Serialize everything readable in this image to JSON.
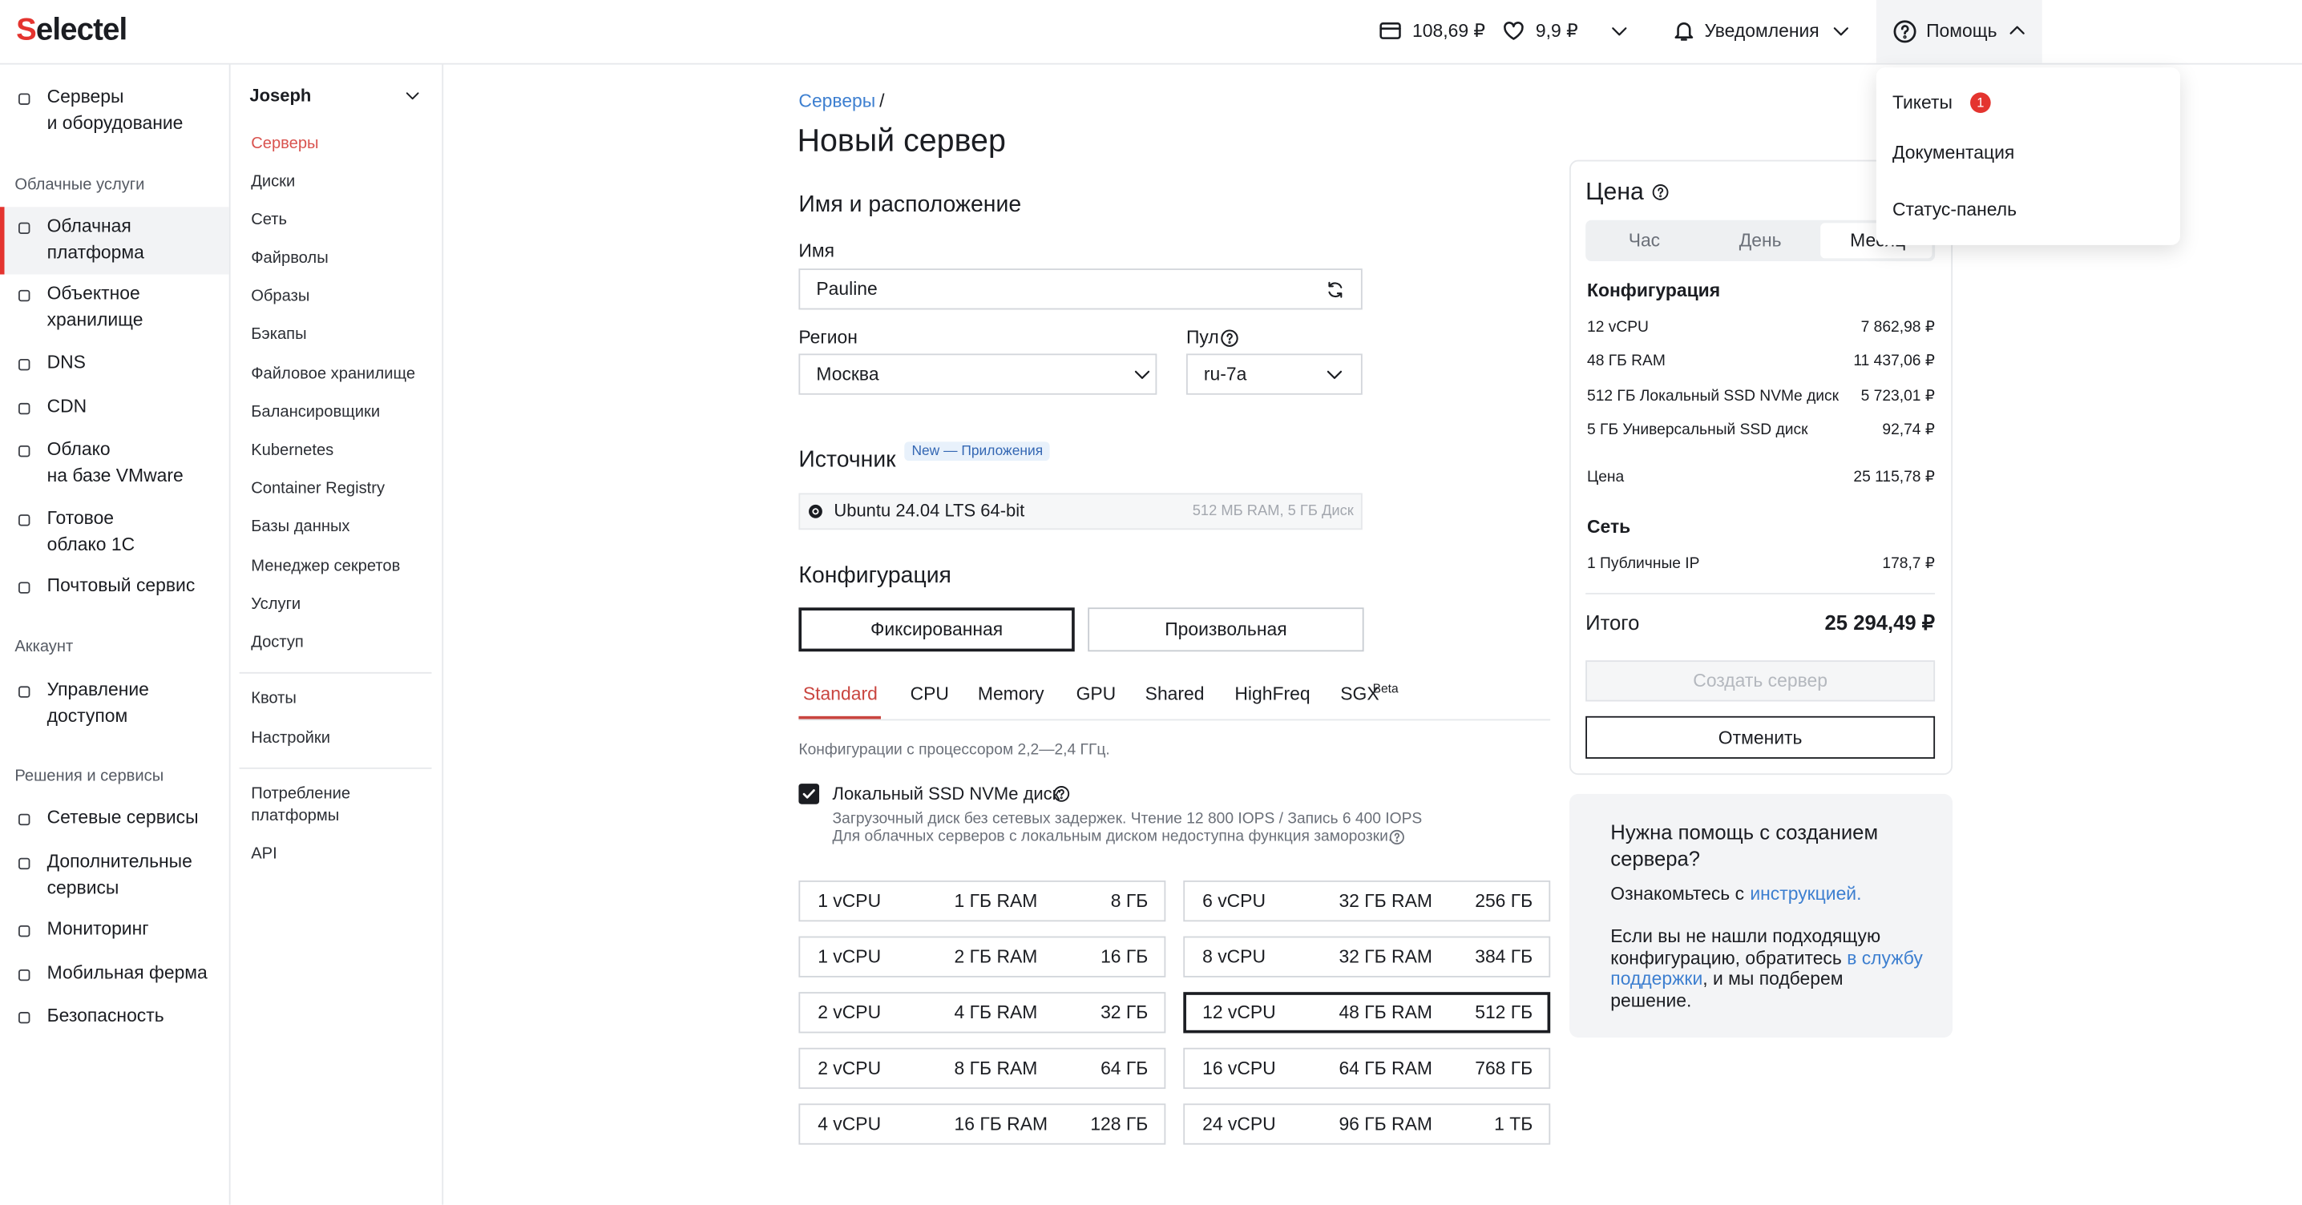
{
  "header": {
    "logo": "Selectel",
    "balance": "108,69 ₽",
    "bonus": "9,9 ₽",
    "notifications": "Уведомления",
    "help": "Помощь"
  },
  "help_menu": {
    "items": [
      {
        "label": "Тикеты",
        "badge": "1"
      },
      {
        "label": "Документация"
      },
      {
        "label": "Статус-панель"
      }
    ]
  },
  "sidebar": {
    "sections": [
      {
        "items": [
          {
            "label": "Серверы\nи оборудование"
          }
        ]
      },
      {
        "heading": "Облачные услуги",
        "items": [
          {
            "label": "Облачная\nплатформа",
            "active": true
          },
          {
            "label": "Объектное\nхранилище"
          },
          {
            "label": "DNS"
          },
          {
            "label": "CDN"
          },
          {
            "label": "Облако\nна базе VMware"
          },
          {
            "label": "Готовое\nоблако 1С"
          },
          {
            "label": "Почтовый сервис"
          }
        ]
      },
      {
        "heading": "Аккаунт",
        "items": [
          {
            "label": "Управление\nдоступом"
          }
        ]
      },
      {
        "heading": "Решения и сервисы",
        "items": [
          {
            "label": "Сетевые сервисы"
          },
          {
            "label": "Дополнительные\nсервисы"
          },
          {
            "label": "Мониторинг"
          },
          {
            "label": "Мобильная ферма"
          },
          {
            "label": "Безопасность"
          }
        ]
      }
    ]
  },
  "project": {
    "name": "Joseph",
    "groups": [
      [
        {
          "label": "Серверы",
          "active": true
        },
        {
          "label": "Диски"
        },
        {
          "label": "Сеть"
        },
        {
          "label": "Файрволы"
        },
        {
          "label": "Образы"
        },
        {
          "label": "Бэкапы"
        },
        {
          "label": "Файловое хранилище"
        },
        {
          "label": "Балансировщики"
        },
        {
          "label": "Kubernetes"
        },
        {
          "label": "Container Registry"
        },
        {
          "label": "Базы данных"
        },
        {
          "label": "Менеджер секретов"
        },
        {
          "label": "Услуги"
        },
        {
          "label": "Доступ"
        }
      ],
      [
        {
          "label": "Квоты"
        },
        {
          "label": "Настройки"
        }
      ],
      [
        {
          "label": "Потребление\nплатформы"
        },
        {
          "label": "API"
        }
      ]
    ]
  },
  "page": {
    "breadcrumb": "Серверы",
    "separator": "/",
    "title": "Новый сервер",
    "location": {
      "heading": "Имя и расположение",
      "name_label": "Имя",
      "name": "Pauline",
      "region_label": "Регион",
      "region": "Москва",
      "pool_label": "Пул",
      "pool": "ru-7a"
    },
    "source": {
      "heading": "Источник",
      "badge": "New — Приложения",
      "image": "Ubuntu 24.04 LTS 64-bit",
      "image_specs": "512 МБ RAM, 5 ГБ Диск"
    },
    "configuration": {
      "heading": "Конфигурация",
      "modes": [
        {
          "label": "Фиксированная",
          "active": true
        },
        {
          "label": "Произвольная"
        }
      ],
      "tabs": [
        {
          "label": "Standard",
          "active": true
        },
        {
          "label": "CPU"
        },
        {
          "label": "Memory"
        },
        {
          "label": "GPU"
        },
        {
          "label": "Shared"
        },
        {
          "label": "HighFreq"
        },
        {
          "label": "SGX",
          "sup": "Beta"
        }
      ],
      "note": "Конфигурации с процессором 2,2—2,4 ГГц.",
      "local_disk": {
        "label": "Локальный SSD NVMe диск",
        "checked": true,
        "description": [
          "Загрузочный диск без сетевых задержек. Чтение 12 800 IOPS / Запись 6 400 IOPS",
          "Для облачных серверов с локальным диском недоступна функция заморозки."
        ]
      },
      "presets": [
        {
          "cpu": "1 vCPU",
          "ram": "1 ГБ RAM",
          "disk": "8 ГБ"
        },
        {
          "cpu": "1 vCPU",
          "ram": "2 ГБ RAM",
          "disk": "16 ГБ"
        },
        {
          "cpu": "2 vCPU",
          "ram": "4 ГБ RAM",
          "disk": "32 ГБ"
        },
        {
          "cpu": "2 vCPU",
          "ram": "8 ГБ RAM",
          "disk": "64 ГБ"
        },
        {
          "cpu": "4 vCPU",
          "ram": "16 ГБ RAM",
          "disk": "128 ГБ"
        },
        {
          "cpu": "6 vCPU",
          "ram": "32 ГБ RAM",
          "disk": "256 ГБ"
        },
        {
          "cpu": "8 vCPU",
          "ram": "32 ГБ RAM",
          "disk": "384 ГБ"
        },
        {
          "cpu": "12 vCPU",
          "ram": "48 ГБ RAM",
          "disk": "512 ГБ",
          "selected": true
        },
        {
          "cpu": "16 vCPU",
          "ram": "64 ГБ RAM",
          "disk": "768 ГБ"
        },
        {
          "cpu": "24 vCPU",
          "ram": "96 ГБ RAM",
          "disk": "1 ТБ"
        }
      ]
    }
  },
  "price": {
    "heading": "Цена",
    "periods": [
      {
        "label": "Час"
      },
      {
        "label": "День"
      },
      {
        "label": "Месяц",
        "active": true
      }
    ],
    "config_heading": "Конфигурация",
    "config_rows": [
      {
        "label": "12 vCPU",
        "value": "7 862,98 ₽"
      },
      {
        "label": "48 ГБ RAM",
        "value": "11 437,06 ₽"
      },
      {
        "label": "512 ГБ Локальный SSD NVMe диск",
        "value": "5 723,01 ₽"
      },
      {
        "label": "5 ГБ Универсальный SSD диск",
        "value": "92,74 ₽"
      }
    ],
    "subtotal_label": "Цена",
    "subtotal": "25 115,78 ₽",
    "network_heading": "Сеть",
    "network_rows": [
      {
        "label": "1 Публичные IP",
        "value": "178,7 ₽"
      }
    ],
    "total_label": "Итого",
    "total": "25 294,49 ₽",
    "create": "Создать сервер",
    "cancel": "Отменить"
  },
  "help_box": {
    "title": "Нужна помощь с созданием сервера?",
    "intro": "Ознакомьтесь с",
    "intro_link": "инструкцией.",
    "text": "Если вы не нашли подходящую конфигурацию, обратитесь",
    "text_link": "в службу поддержки",
    "text_end": ", и мы подберем решение."
  }
}
